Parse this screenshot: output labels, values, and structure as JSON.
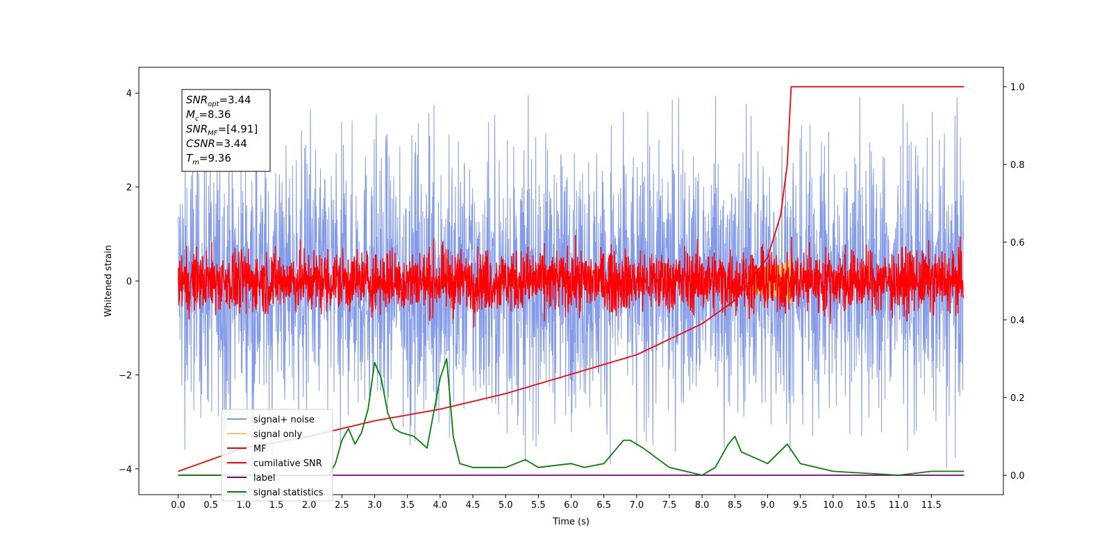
{
  "chart_data": {
    "type": "line",
    "xlabel": "Time (s)",
    "ylabel": "Whitened strain",
    "xlim": [
      -0.6,
      12.6
    ],
    "ylim": [
      -4.55,
      4.55
    ],
    "y2lim": [
      -0.05,
      1.05
    ],
    "x_ticks": [
      "0.0",
      "0.5",
      "1.0",
      "1.5",
      "2.0",
      "2.5",
      "3.0",
      "3.5",
      "4.0",
      "4.5",
      "5.0",
      "5.5",
      "6.0",
      "6.5",
      "7.0",
      "7.5",
      "8.0",
      "8.5",
      "9.0",
      "9.5",
      "10.0",
      "10.5",
      "11.0",
      "11.5"
    ],
    "y_ticks": [
      "4",
      "2",
      "0",
      "−2",
      "−4"
    ],
    "y2_ticks": [
      "1.0",
      "0.8",
      "0.6",
      "0.4",
      "0.2",
      "0.0"
    ],
    "grid": false,
    "legend_position": "lower-left",
    "annotations": [
      {
        "var": "SNR",
        "sub": "opt",
        "value": "=3.44"
      },
      {
        "var": "M",
        "sub": "c",
        "value": "=8.36"
      },
      {
        "var": "SNR",
        "sub": "MF",
        "value": "=[4.91]"
      },
      {
        "var": "CSNR",
        "sub": "",
        "value": "=3.44"
      },
      {
        "var": "T",
        "sub": "m",
        "value": "=9.36"
      }
    ],
    "series": [
      {
        "name": "signal+ noise",
        "color": "#7b95e8",
        "axis": "left",
        "kind": "noise",
        "amplitude_approx": 2.3,
        "x_range": [
          0.0,
          11.99
        ]
      },
      {
        "name": "signal only",
        "color": "#f5c36b",
        "axis": "left",
        "kind": "chirp",
        "peak_time": 9.36
      },
      {
        "name": "MF",
        "color": "#ff0000",
        "axis": "left",
        "kind": "noise",
        "amplitude_approx": 0.55,
        "x_range": [
          0.0,
          11.99
        ]
      },
      {
        "name": "cumilative SNR",
        "color": "#ff0000",
        "axis": "right",
        "x": [
          0.0,
          1.0,
          2.0,
          3.0,
          4.0,
          5.0,
          6.0,
          7.0,
          8.0,
          8.5,
          9.0,
          9.2,
          9.3,
          9.36,
          12.0
        ],
        "y": [
          0.01,
          0.07,
          0.1,
          0.14,
          0.17,
          0.21,
          0.26,
          0.31,
          0.39,
          0.45,
          0.56,
          0.67,
          0.8,
          1.0,
          1.0
        ]
      },
      {
        "name": "label",
        "color": "#800080",
        "axis": "right",
        "x": [
          0.0,
          12.0
        ],
        "y": [
          0.0,
          0.0
        ]
      },
      {
        "name": "signal statistics",
        "color": "#008000",
        "axis": "right",
        "x": [
          0.0,
          0.5,
          1.0,
          1.5,
          2.0,
          2.3,
          2.4,
          2.5,
          2.6,
          2.7,
          2.8,
          2.9,
          3.0,
          3.1,
          3.2,
          3.3,
          3.4,
          3.6,
          3.8,
          4.0,
          4.1,
          4.2,
          4.3,
          4.5,
          5.0,
          5.3,
          5.5,
          6.0,
          6.2,
          6.5,
          6.8,
          6.9,
          7.1,
          7.5,
          8.0,
          8.2,
          8.4,
          8.5,
          8.6,
          9.0,
          9.3,
          9.5,
          10.0,
          11.0,
          11.5,
          12.0
        ],
        "y": [
          0.0,
          0.0,
          0.0,
          0.0,
          0.0,
          0.0,
          0.03,
          0.09,
          0.12,
          0.08,
          0.11,
          0.17,
          0.29,
          0.25,
          0.16,
          0.12,
          0.11,
          0.1,
          0.07,
          0.25,
          0.3,
          0.1,
          0.03,
          0.02,
          0.02,
          0.04,
          0.02,
          0.03,
          0.02,
          0.03,
          0.09,
          0.09,
          0.07,
          0.02,
          0.0,
          0.02,
          0.08,
          0.1,
          0.06,
          0.03,
          0.08,
          0.03,
          0.01,
          0.0,
          0.01,
          0.01
        ]
      }
    ]
  }
}
